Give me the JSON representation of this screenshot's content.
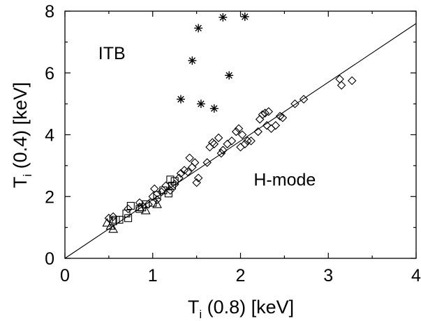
{
  "chart_data": {
    "type": "scatter",
    "xlabel": {
      "main": "T",
      "sub": "i",
      "rest": " (0.8) [keV]"
    },
    "ylabel": {
      "main": "T",
      "sub": "i",
      "rest": " (0.4) [keV]"
    },
    "xlim": [
      0,
      4
    ],
    "ylim": [
      0,
      8
    ],
    "xticks": [
      "0",
      "1",
      "2",
      "3",
      "4"
    ],
    "yticks": [
      "0",
      "2",
      "4",
      "6",
      "8"
    ],
    "grid": false,
    "annotations": [
      {
        "text": "ITB",
        "x": 0.38,
        "y": 6.45
      },
      {
        "text": "H-mode",
        "x": 2.15,
        "y": 2.35
      }
    ],
    "reference_line": {
      "x": [
        0,
        4
      ],
      "y": [
        0,
        7.6
      ]
    },
    "series": [
      {
        "marker": "asterisk",
        "x": [
          1.32,
          1.45,
          1.52,
          1.55,
          1.7,
          1.8,
          1.87,
          2.05
        ],
        "y": [
          5.15,
          6.4,
          7.45,
          5.0,
          4.85,
          7.8,
          5.92,
          7.82
        ]
      },
      {
        "marker": "diamond",
        "x": [
          0.5,
          0.55,
          0.72,
          0.85,
          0.95,
          1.0,
          1.02,
          1.05,
          1.1,
          1.15,
          1.2,
          1.25,
          1.3,
          1.32,
          1.36,
          1.4,
          1.42,
          1.45,
          1.48,
          1.5,
          1.52,
          1.62,
          1.65,
          1.68,
          1.7,
          1.75,
          1.78,
          1.8,
          1.85,
          1.9,
          1.95,
          1.98,
          2.0,
          2.02,
          2.05,
          2.08,
          2.12,
          2.2,
          2.22,
          2.25,
          2.28,
          2.3,
          2.32,
          2.35,
          2.4,
          2.45,
          2.48,
          2.62,
          2.72,
          3.13,
          3.15,
          3.27
        ],
        "y": [
          1.3,
          1.35,
          1.6,
          1.8,
          1.75,
          2.0,
          2.25,
          1.9,
          2.15,
          2.35,
          2.2,
          2.4,
          2.6,
          2.75,
          2.85,
          2.8,
          3.25,
          2.95,
          3.1,
          2.45,
          2.6,
          3.1,
          3.6,
          3.75,
          3.7,
          3.9,
          3.4,
          3.5,
          3.7,
          3.8,
          4.1,
          4.2,
          3.6,
          4.0,
          3.7,
          3.8,
          3.8,
          4.1,
          4.5,
          4.65,
          4.7,
          4.3,
          4.75,
          4.2,
          4.3,
          4.6,
          4.55,
          5.0,
          5.15,
          5.8,
          5.6,
          5.75
        ]
      },
      {
        "marker": "square",
        "x": [
          0.55,
          0.58,
          0.62,
          0.7,
          0.72,
          0.75,
          0.85,
          0.88,
          0.92,
          1.0,
          1.05,
          1.12,
          1.18,
          1.2,
          1.22,
          1.25
        ],
        "y": [
          1.2,
          1.25,
          1.25,
          1.45,
          1.3,
          1.7,
          1.6,
          1.65,
          1.75,
          1.8,
          2.05,
          2.2,
          2.1,
          2.55,
          2.35,
          2.5
        ]
      },
      {
        "marker": "triangle",
        "x": [
          0.48,
          0.52,
          0.55,
          0.85,
          0.92,
          1.05
        ],
        "y": [
          1.15,
          1.05,
          0.95,
          1.65,
          1.55,
          1.75
        ]
      }
    ]
  }
}
